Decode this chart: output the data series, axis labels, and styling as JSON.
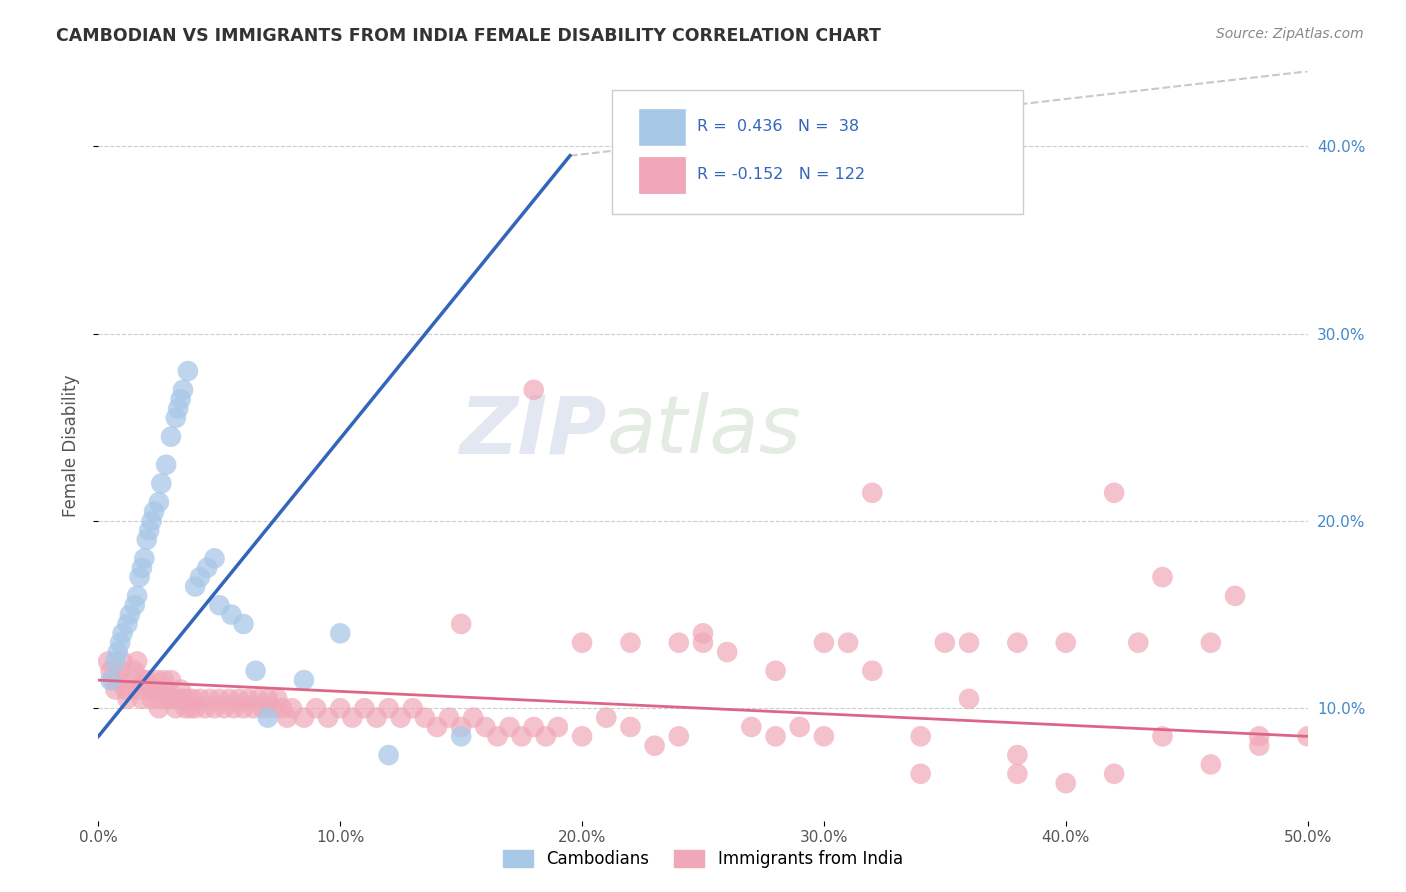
{
  "title": "CAMBODIAN VS IMMIGRANTS FROM INDIA FEMALE DISABILITY CORRELATION CHART",
  "source": "Source: ZipAtlas.com",
  "ylabel": "Female Disability",
  "xlim": [
    0.0,
    0.5
  ],
  "ylim": [
    0.04,
    0.44
  ],
  "blue_R": 0.436,
  "blue_N": 38,
  "pink_R": -0.152,
  "pink_N": 122,
  "blue_color": "#a8c8e8",
  "pink_color": "#f0a8b8",
  "blue_line_color": "#3366bb",
  "pink_line_color": "#dd6688",
  "dash_line_color": "#bbbbbb",
  "background_color": "#ffffff",
  "grid_color": "#cccccc",
  "legend_label_blue": "Cambodians",
  "legend_label_pink": "Immigrants from India",
  "watermark_text": "ZIPatlas",
  "blue_x": [
    0.005,
    0.007,
    0.008,
    0.009,
    0.01,
    0.012,
    0.013,
    0.015,
    0.016,
    0.017,
    0.018,
    0.019,
    0.02,
    0.021,
    0.022,
    0.023,
    0.025,
    0.026,
    0.028,
    0.03,
    0.032,
    0.033,
    0.034,
    0.035,
    0.037,
    0.04,
    0.042,
    0.045,
    0.048,
    0.05,
    0.055,
    0.06,
    0.065,
    0.07,
    0.085,
    0.1,
    0.12,
    0.15
  ],
  "blue_y": [
    0.115,
    0.125,
    0.13,
    0.135,
    0.14,
    0.145,
    0.15,
    0.155,
    0.16,
    0.17,
    0.175,
    0.18,
    0.19,
    0.195,
    0.2,
    0.205,
    0.21,
    0.22,
    0.23,
    0.245,
    0.255,
    0.26,
    0.265,
    0.27,
    0.28,
    0.165,
    0.17,
    0.175,
    0.18,
    0.155,
    0.15,
    0.145,
    0.12,
    0.095,
    0.115,
    0.14,
    0.075,
    0.085
  ],
  "pink_x": [
    0.004,
    0.005,
    0.006,
    0.007,
    0.008,
    0.009,
    0.01,
    0.011,
    0.012,
    0.013,
    0.014,
    0.015,
    0.016,
    0.017,
    0.018,
    0.019,
    0.02,
    0.021,
    0.022,
    0.023,
    0.024,
    0.025,
    0.026,
    0.027,
    0.028,
    0.029,
    0.03,
    0.031,
    0.032,
    0.033,
    0.034,
    0.035,
    0.036,
    0.037,
    0.038,
    0.039,
    0.04,
    0.042,
    0.044,
    0.046,
    0.048,
    0.05,
    0.052,
    0.054,
    0.056,
    0.058,
    0.06,
    0.062,
    0.064,
    0.066,
    0.068,
    0.07,
    0.072,
    0.074,
    0.076,
    0.078,
    0.08,
    0.085,
    0.09,
    0.095,
    0.1,
    0.105,
    0.11,
    0.115,
    0.12,
    0.125,
    0.13,
    0.135,
    0.14,
    0.145,
    0.15,
    0.155,
    0.16,
    0.165,
    0.17,
    0.175,
    0.18,
    0.185,
    0.19,
    0.2,
    0.21,
    0.22,
    0.23,
    0.24,
    0.25,
    0.26,
    0.27,
    0.28,
    0.29,
    0.3,
    0.32,
    0.34,
    0.36,
    0.38,
    0.4,
    0.42,
    0.44,
    0.46,
    0.48,
    0.5,
    0.15,
    0.18,
    0.22,
    0.25,
    0.28,
    0.31,
    0.35,
    0.38,
    0.42,
    0.46,
    0.2,
    0.24,
    0.32,
    0.36,
    0.4,
    0.44,
    0.48,
    0.3,
    0.34,
    0.38,
    0.43,
    0.47
  ],
  "pink_y": [
    0.125,
    0.12,
    0.115,
    0.11,
    0.115,
    0.12,
    0.125,
    0.11,
    0.105,
    0.11,
    0.115,
    0.12,
    0.125,
    0.11,
    0.105,
    0.115,
    0.115,
    0.11,
    0.105,
    0.11,
    0.115,
    0.1,
    0.105,
    0.115,
    0.11,
    0.105,
    0.115,
    0.105,
    0.1,
    0.105,
    0.11,
    0.105,
    0.1,
    0.105,
    0.1,
    0.105,
    0.1,
    0.105,
    0.1,
    0.105,
    0.1,
    0.105,
    0.1,
    0.105,
    0.1,
    0.105,
    0.1,
    0.105,
    0.1,
    0.105,
    0.1,
    0.105,
    0.1,
    0.105,
    0.1,
    0.095,
    0.1,
    0.095,
    0.1,
    0.095,
    0.1,
    0.095,
    0.1,
    0.095,
    0.1,
    0.095,
    0.1,
    0.095,
    0.09,
    0.095,
    0.09,
    0.095,
    0.09,
    0.085,
    0.09,
    0.085,
    0.09,
    0.085,
    0.09,
    0.085,
    0.095,
    0.09,
    0.08,
    0.085,
    0.14,
    0.13,
    0.09,
    0.085,
    0.09,
    0.085,
    0.12,
    0.085,
    0.105,
    0.065,
    0.06,
    0.065,
    0.085,
    0.07,
    0.085,
    0.085,
    0.145,
    0.27,
    0.135,
    0.135,
    0.12,
    0.135,
    0.135,
    0.135,
    0.215,
    0.135,
    0.135,
    0.135,
    0.215,
    0.135,
    0.135,
    0.17,
    0.08,
    0.135,
    0.065,
    0.075,
    0.135,
    0.16
  ]
}
